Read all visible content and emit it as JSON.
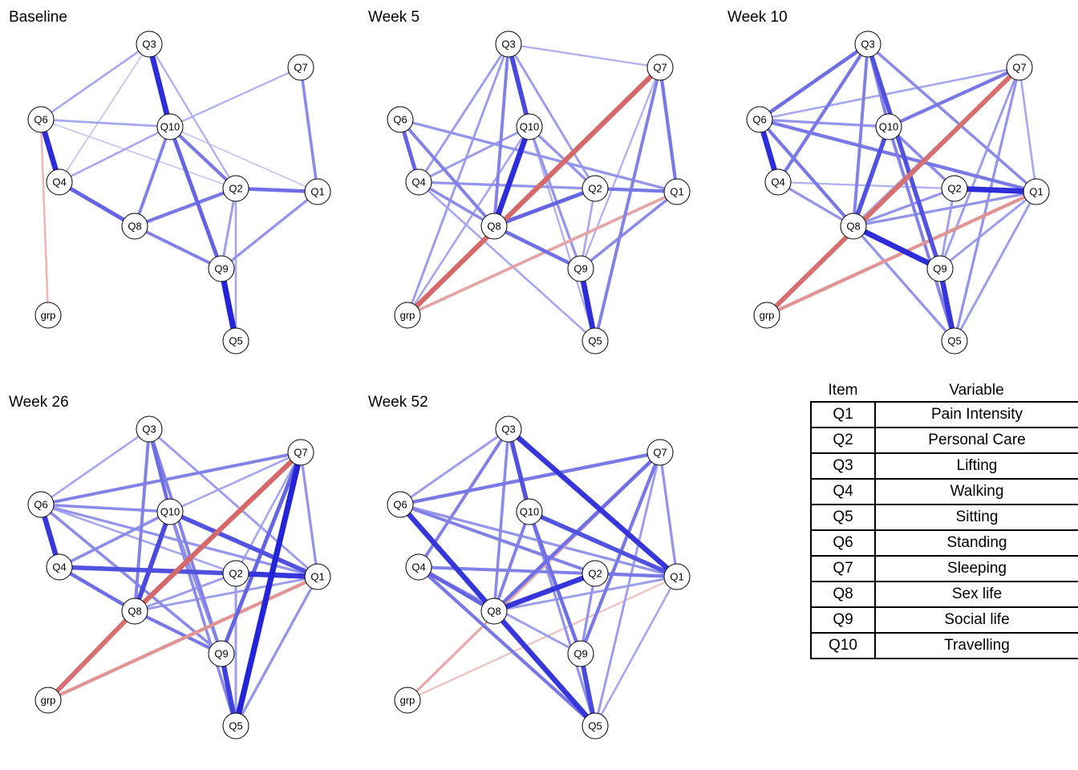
{
  "colors": {
    "positive": "#1a1ad6",
    "negative": "#cd4a4a",
    "node_fill": "#ffffff",
    "node_stroke": "#000000"
  },
  "legend": {
    "header_item": "Item",
    "header_variable": "Variable",
    "rows": [
      {
        "item": "Q1",
        "variable": "Pain Intensity"
      },
      {
        "item": "Q2",
        "variable": "Personal Care"
      },
      {
        "item": "Q3",
        "variable": "Lifting"
      },
      {
        "item": "Q4",
        "variable": "Walking"
      },
      {
        "item": "Q5",
        "variable": "Sitting"
      },
      {
        "item": "Q6",
        "variable": "Standing"
      },
      {
        "item": "Q7",
        "variable": "Sleeping"
      },
      {
        "item": "Q8",
        "variable": "Sex life"
      },
      {
        "item": "Q9",
        "variable": "Social life"
      },
      {
        "item": "Q10",
        "variable": "Travelling"
      }
    ]
  },
  "networks": [
    {
      "title": "Baseline",
      "edges": [
        {
          "from": "Q3",
          "to": "Q10",
          "weight": 0.9,
          "sign": "+"
        },
        {
          "from": "Q6",
          "to": "Q4",
          "weight": 0.9,
          "sign": "+"
        },
        {
          "from": "Q9",
          "to": "Q5",
          "weight": 0.95,
          "sign": "+"
        },
        {
          "from": "Q4",
          "to": "Q8",
          "weight": 0.6,
          "sign": "+"
        },
        {
          "from": "Q10",
          "to": "Q9",
          "weight": 0.6,
          "sign": "+"
        },
        {
          "from": "Q10",
          "to": "Q2",
          "weight": 0.5,
          "sign": "+"
        },
        {
          "from": "Q2",
          "to": "Q1",
          "weight": 0.55,
          "sign": "+"
        },
        {
          "from": "Q8",
          "to": "Q2",
          "weight": 0.5,
          "sign": "+"
        },
        {
          "from": "Q8",
          "to": "Q9",
          "weight": 0.45,
          "sign": "+"
        },
        {
          "from": "Q10",
          "to": "Q8",
          "weight": 0.45,
          "sign": "+"
        },
        {
          "from": "Q7",
          "to": "Q1",
          "weight": 0.4,
          "sign": "+"
        },
        {
          "from": "Q9",
          "to": "Q1",
          "weight": 0.35,
          "sign": "+"
        },
        {
          "from": "Q2",
          "to": "Q9",
          "weight": 0.3,
          "sign": "+"
        },
        {
          "from": "Q2",
          "to": "Q5",
          "weight": 0.25,
          "sign": "+"
        },
        {
          "from": "Q6",
          "to": "Q10",
          "weight": 0.25,
          "sign": "+"
        },
        {
          "from": "Q4",
          "to": "Q10",
          "weight": 0.25,
          "sign": "+"
        },
        {
          "from": "Q3",
          "to": "Q6",
          "weight": 0.25,
          "sign": "+"
        },
        {
          "from": "Q10",
          "to": "Q7",
          "weight": 0.2,
          "sign": "+"
        },
        {
          "from": "Q3",
          "to": "Q2",
          "weight": 0.2,
          "sign": "+"
        },
        {
          "from": "Q6",
          "to": "grp",
          "weight": 0.25,
          "sign": "-"
        },
        {
          "from": "Q3",
          "to": "Q4",
          "weight": 0.1,
          "sign": "+"
        },
        {
          "from": "Q10",
          "to": "Q1",
          "weight": 0.1,
          "sign": "+"
        },
        {
          "from": "Q6",
          "to": "Q2",
          "weight": 0.1,
          "sign": "+"
        }
      ]
    },
    {
      "title": "Week 5",
      "edges": [
        {
          "from": "Q3",
          "to": "Q10",
          "weight": 0.75,
          "sign": "+"
        },
        {
          "from": "Q10",
          "to": "Q8",
          "weight": 0.9,
          "sign": "+"
        },
        {
          "from": "Q9",
          "to": "Q5",
          "weight": 0.9,
          "sign": "+"
        },
        {
          "from": "Q7",
          "to": "grp",
          "weight": 0.8,
          "sign": "-"
        },
        {
          "from": "Q6",
          "to": "Q4",
          "weight": 0.6,
          "sign": "+"
        },
        {
          "from": "Q8",
          "to": "Q2",
          "weight": 0.6,
          "sign": "+"
        },
        {
          "from": "Q8",
          "to": "Q9",
          "weight": 0.55,
          "sign": "+"
        },
        {
          "from": "Q2",
          "to": "Q1",
          "weight": 0.5,
          "sign": "+"
        },
        {
          "from": "Q7",
          "to": "Q1",
          "weight": 0.5,
          "sign": "+"
        },
        {
          "from": "Q7",
          "to": "Q5",
          "weight": 0.45,
          "sign": "+"
        },
        {
          "from": "Q6",
          "to": "Q8",
          "weight": 0.45,
          "sign": "+"
        },
        {
          "from": "Q3",
          "to": "Q8",
          "weight": 0.45,
          "sign": "+"
        },
        {
          "from": "Q1",
          "to": "grp",
          "weight": 0.4,
          "sign": "-"
        },
        {
          "from": "Q1",
          "to": "Q9",
          "weight": 0.4,
          "sign": "+"
        },
        {
          "from": "Q4",
          "to": "Q8",
          "weight": 0.4,
          "sign": "+"
        },
        {
          "from": "Q6",
          "to": "Q1",
          "weight": 0.35,
          "sign": "+"
        },
        {
          "from": "Q4",
          "to": "Q1",
          "weight": 0.35,
          "sign": "+"
        },
        {
          "from": "Q10",
          "to": "Q2",
          "weight": 0.35,
          "sign": "+"
        },
        {
          "from": "Q10",
          "to": "Q9",
          "weight": 0.35,
          "sign": "+"
        },
        {
          "from": "Q3",
          "to": "Q2",
          "weight": 0.3,
          "sign": "+"
        },
        {
          "from": "Q3",
          "to": "grp",
          "weight": 0.3,
          "sign": "+"
        },
        {
          "from": "Q3",
          "to": "Q4",
          "weight": 0.3,
          "sign": "+"
        },
        {
          "from": "Q10",
          "to": "Q4",
          "weight": 0.3,
          "sign": "+"
        },
        {
          "from": "Q4",
          "to": "Q5",
          "weight": 0.25,
          "sign": "+"
        },
        {
          "from": "Q10",
          "to": "grp",
          "weight": 0.25,
          "sign": "+"
        },
        {
          "from": "Q2",
          "to": "Q9",
          "weight": 0.25,
          "sign": "+"
        },
        {
          "from": "Q7",
          "to": "Q9",
          "weight": 0.2,
          "sign": "+"
        },
        {
          "from": "Q3",
          "to": "Q7",
          "weight": 0.2,
          "sign": "+"
        },
        {
          "from": "Q10",
          "to": "Q5",
          "weight": 0.2,
          "sign": "+"
        }
      ]
    },
    {
      "title": "Week 10",
      "edges": [
        {
          "from": "Q6",
          "to": "Q4",
          "weight": 0.9,
          "sign": "+"
        },
        {
          "from": "Q2",
          "to": "Q1",
          "weight": 0.9,
          "sign": "+"
        },
        {
          "from": "Q8",
          "to": "Q9",
          "weight": 0.9,
          "sign": "+"
        },
        {
          "from": "Q9",
          "to": "Q5",
          "weight": 0.85,
          "sign": "+"
        },
        {
          "from": "Q7",
          "to": "grp",
          "weight": 0.75,
          "sign": "-"
        },
        {
          "from": "Q3",
          "to": "Q9",
          "weight": 0.7,
          "sign": "+"
        },
        {
          "from": "Q10",
          "to": "Q8",
          "weight": 0.7,
          "sign": "+"
        },
        {
          "from": "Q3",
          "to": "Q6",
          "weight": 0.55,
          "sign": "+"
        },
        {
          "from": "Q3",
          "to": "Q4",
          "weight": 0.5,
          "sign": "+"
        },
        {
          "from": "Q6",
          "to": "Q1",
          "weight": 0.5,
          "sign": "+"
        },
        {
          "from": "Q6",
          "to": "Q8",
          "weight": 0.5,
          "sign": "+"
        },
        {
          "from": "Q10",
          "to": "Q7",
          "weight": 0.5,
          "sign": "+"
        },
        {
          "from": "Q1",
          "to": "grp",
          "weight": 0.5,
          "sign": "-"
        },
        {
          "from": "Q10",
          "to": "Q5",
          "weight": 0.45,
          "sign": "+"
        },
        {
          "from": "Q3",
          "to": "Q8",
          "weight": 0.45,
          "sign": "+"
        },
        {
          "from": "Q3",
          "to": "Q1",
          "weight": 0.4,
          "sign": "+"
        },
        {
          "from": "Q10",
          "to": "Q2",
          "weight": 0.4,
          "sign": "+"
        },
        {
          "from": "Q8",
          "to": "Q2",
          "weight": 0.35,
          "sign": "+"
        },
        {
          "from": "Q8",
          "to": "Q1",
          "weight": 0.35,
          "sign": "+"
        },
        {
          "from": "Q8",
          "to": "Q5",
          "weight": 0.35,
          "sign": "+"
        },
        {
          "from": "Q6",
          "to": "Q10",
          "weight": 0.35,
          "sign": "+"
        },
        {
          "from": "Q4",
          "to": "Q8",
          "weight": 0.35,
          "sign": "+"
        },
        {
          "from": "Q7",
          "to": "Q5",
          "weight": 0.35,
          "sign": "+"
        },
        {
          "from": "Q7",
          "to": "Q9",
          "weight": 0.3,
          "sign": "+"
        },
        {
          "from": "Q1",
          "to": "Q5",
          "weight": 0.3,
          "sign": "+"
        },
        {
          "from": "Q1",
          "to": "Q9",
          "weight": 0.3,
          "sign": "+"
        },
        {
          "from": "Q6",
          "to": "Q7",
          "weight": 0.25,
          "sign": "+"
        },
        {
          "from": "Q7",
          "to": "Q1",
          "weight": 0.25,
          "sign": "+"
        },
        {
          "from": "Q4",
          "to": "Q1",
          "weight": 0.2,
          "sign": "+"
        },
        {
          "from": "Q7",
          "to": "Q8",
          "weight": 0.25,
          "sign": "+"
        },
        {
          "from": "Q2",
          "to": "Q9",
          "weight": 0.3,
          "sign": "+"
        },
        {
          "from": "Q3",
          "to": "Q10",
          "weight": 0.45,
          "sign": "+"
        }
      ]
    },
    {
      "title": "Week 26",
      "edges": [
        {
          "from": "Q7",
          "to": "Q5",
          "weight": 0.95,
          "sign": "+"
        },
        {
          "from": "Q6",
          "to": "Q4",
          "weight": 0.85,
          "sign": "+"
        },
        {
          "from": "Q2",
          "to": "Q1",
          "weight": 0.85,
          "sign": "+"
        },
        {
          "from": "Q10",
          "to": "Q8",
          "weight": 0.75,
          "sign": "+"
        },
        {
          "from": "Q7",
          "to": "Q8",
          "weight": 0.8,
          "sign": "-"
        },
        {
          "from": "Q8",
          "to": "grp",
          "weight": 0.75,
          "sign": "-"
        },
        {
          "from": "Q4",
          "to": "Q2",
          "weight": 0.7,
          "sign": "+"
        },
        {
          "from": "Q10",
          "to": "Q1",
          "weight": 0.7,
          "sign": "+"
        },
        {
          "from": "Q9",
          "to": "Q5",
          "weight": 0.8,
          "sign": "+"
        },
        {
          "from": "Q7",
          "to": "Q9",
          "weight": 0.6,
          "sign": "+"
        },
        {
          "from": "Q4",
          "to": "Q8",
          "weight": 0.55,
          "sign": "+"
        },
        {
          "from": "Q8",
          "to": "Q9",
          "weight": 0.5,
          "sign": "+"
        },
        {
          "from": "Q1",
          "to": "grp",
          "weight": 0.5,
          "sign": "-"
        },
        {
          "from": "Q3",
          "to": "Q10",
          "weight": 0.55,
          "sign": "+"
        },
        {
          "from": "Q3",
          "to": "Q9",
          "weight": 0.45,
          "sign": "+"
        },
        {
          "from": "Q3",
          "to": "Q8",
          "weight": 0.45,
          "sign": "+"
        },
        {
          "from": "Q6",
          "to": "Q7",
          "weight": 0.45,
          "sign": "+"
        },
        {
          "from": "Q6",
          "to": "Q10",
          "weight": 0.4,
          "sign": "+"
        },
        {
          "from": "Q6",
          "to": "Q9",
          "weight": 0.4,
          "sign": "+"
        },
        {
          "from": "Q4",
          "to": "Q10",
          "weight": 0.4,
          "sign": "+"
        },
        {
          "from": "Q10",
          "to": "Q5",
          "weight": 0.4,
          "sign": "+"
        },
        {
          "from": "Q10",
          "to": "Q9",
          "weight": 0.35,
          "sign": "+"
        },
        {
          "from": "Q6",
          "to": "Q1",
          "weight": 0.35,
          "sign": "+"
        },
        {
          "from": "Q7",
          "to": "Q1",
          "weight": 0.35,
          "sign": "+"
        },
        {
          "from": "Q1",
          "to": "Q5",
          "weight": 0.35,
          "sign": "+"
        },
        {
          "from": "Q8",
          "to": "Q1",
          "weight": 0.3,
          "sign": "+"
        },
        {
          "from": "Q3",
          "to": "Q1",
          "weight": 0.3,
          "sign": "+"
        },
        {
          "from": "Q2",
          "to": "Q5",
          "weight": 0.3,
          "sign": "+"
        },
        {
          "from": "Q8",
          "to": "Q2",
          "weight": 0.3,
          "sign": "+"
        },
        {
          "from": "Q6",
          "to": "Q2",
          "weight": 0.25,
          "sign": "+"
        },
        {
          "from": "Q3",
          "to": "Q6",
          "weight": 0.25,
          "sign": "+"
        },
        {
          "from": "Q10",
          "to": "Q7",
          "weight": 0.25,
          "sign": "+"
        },
        {
          "from": "Q7",
          "to": "Q2",
          "weight": 0.25,
          "sign": "+"
        }
      ]
    },
    {
      "title": "Week 52",
      "edges": [
        {
          "from": "Q3",
          "to": "Q1",
          "weight": 0.85,
          "sign": "+"
        },
        {
          "from": "Q6",
          "to": "Q8",
          "weight": 0.85,
          "sign": "+"
        },
        {
          "from": "Q8",
          "to": "Q5",
          "weight": 0.85,
          "sign": "+"
        },
        {
          "from": "Q8",
          "to": "Q2",
          "weight": 0.85,
          "sign": "+"
        },
        {
          "from": "Q10",
          "to": "Q1",
          "weight": 0.7,
          "sign": "+"
        },
        {
          "from": "Q3",
          "to": "Q10",
          "weight": 0.7,
          "sign": "+"
        },
        {
          "from": "Q9",
          "to": "Q5",
          "weight": 0.75,
          "sign": "+"
        },
        {
          "from": "Q4",
          "to": "Q8",
          "weight": 0.6,
          "sign": "+"
        },
        {
          "from": "Q7",
          "to": "Q8",
          "weight": 0.55,
          "sign": "+"
        },
        {
          "from": "Q10",
          "to": "Q9",
          "weight": 0.55,
          "sign": "+"
        },
        {
          "from": "Q7",
          "to": "Q9",
          "weight": 0.5,
          "sign": "+"
        },
        {
          "from": "Q2",
          "to": "Q1",
          "weight": 0.5,
          "sign": "+"
        },
        {
          "from": "Q6",
          "to": "Q7",
          "weight": 0.5,
          "sign": "+"
        },
        {
          "from": "Q4",
          "to": "Q5",
          "weight": 0.5,
          "sign": "+"
        },
        {
          "from": "Q3",
          "to": "Q4",
          "weight": 0.45,
          "sign": "+"
        },
        {
          "from": "Q10",
          "to": "Q8",
          "weight": 0.45,
          "sign": "+"
        },
        {
          "from": "Q6",
          "to": "Q2",
          "weight": 0.45,
          "sign": "+"
        },
        {
          "from": "Q4",
          "to": "Q1",
          "weight": 0.45,
          "sign": "+"
        },
        {
          "from": "Q3",
          "to": "Q8",
          "weight": 0.4,
          "sign": "+"
        },
        {
          "from": "Q6",
          "to": "Q1",
          "weight": 0.35,
          "sign": "+"
        },
        {
          "from": "Q7",
          "to": "Q1",
          "weight": 0.35,
          "sign": "+"
        },
        {
          "from": "Q2",
          "to": "Q9",
          "weight": 0.35,
          "sign": "+"
        },
        {
          "from": "Q10",
          "to": "Q5",
          "weight": 0.35,
          "sign": "+"
        },
        {
          "from": "Q3",
          "to": "Q6",
          "weight": 0.3,
          "sign": "+"
        },
        {
          "from": "Q4",
          "to": "Q9",
          "weight": 0.3,
          "sign": "+"
        },
        {
          "from": "Q7",
          "to": "Q5",
          "weight": 0.3,
          "sign": "+"
        },
        {
          "from": "Q1",
          "to": "Q5",
          "weight": 0.25,
          "sign": "+"
        },
        {
          "from": "Q7",
          "to": "grp",
          "weight": 0.35,
          "sign": "-"
        },
        {
          "from": "Q1",
          "to": "grp",
          "weight": 0.2,
          "sign": "-"
        },
        {
          "from": "Q8",
          "to": "Q1",
          "weight": 0.3,
          "sign": "+"
        }
      ]
    }
  ]
}
